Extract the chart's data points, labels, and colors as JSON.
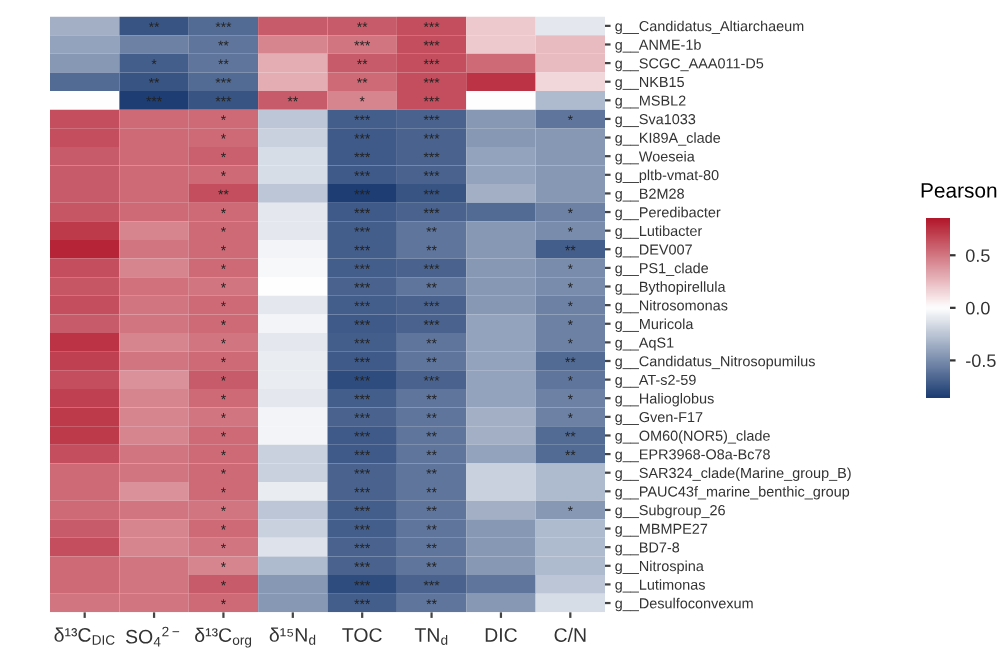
{
  "chart_data": {
    "type": "heatmap",
    "categories": [
      "δ¹³C$_{DIC}$",
      "SO$_{4}$$^{2−}$",
      "δ¹³C$_{org}$",
      "δ¹⁵N$_{d}$",
      "TOC",
      "TN$_{d}$",
      "DIC",
      "C/N"
    ],
    "y_categories": [
      "g__Candidatus_Altiarchaeum",
      "g__ANME-1b",
      "g__SCGC_AAA011-D5",
      "g__NKB15",
      "g__MSBL2",
      "g__Sva1033",
      "g__KI89A_clade",
      "g__Woeseia",
      "g__pltb-vmat-80",
      "g__B2M28",
      "g__Peredibacter",
      "g__Lutibacter",
      "g__DEV007",
      "g__PS1_clade",
      "g__Bythopirellula",
      "g__Nitrosomonas",
      "g__Muricola",
      "g__AqS1",
      "g__Candidatus_Nitrosopumilus",
      "g__AT-s2-59",
      "g__Halioglobus",
      "g__Gven-F17",
      "g__OM60(NOR5)_clade",
      "g__EPR3968-O8a-Bc78",
      "g__SAR324_clade(Marine_group_B)",
      "g__PAUC43f_marine_benthic_group",
      "g__Subgroup_26",
      "g__MBMPE27",
      "g__BD7-8",
      "g__Nitrospina",
      "g__Lutimonas",
      "g__Desulfoconvexum"
    ],
    "cells": [
      [
        -0.35,
        -0.75,
        -0.65,
        0.6,
        0.6,
        0.65,
        0.2,
        -0.1
      ],
      [
        -0.4,
        -0.55,
        -0.6,
        0.45,
        0.5,
        0.65,
        0.2,
        0.25
      ],
      [
        -0.45,
        -0.7,
        -0.6,
        0.3,
        0.6,
        0.65,
        0.55,
        0.25
      ],
      [
        -0.65,
        -0.75,
        -0.65,
        0.3,
        0.55,
        0.65,
        0.75,
        0.15
      ],
      [
        0.0,
        -0.85,
        -0.75,
        0.6,
        0.45,
        0.65,
        0.0,
        -0.3
      ],
      [
        0.65,
        0.55,
        0.55,
        -0.25,
        -0.7,
        -0.68,
        -0.45,
        -0.6
      ],
      [
        0.65,
        0.55,
        0.55,
        -0.2,
        -0.72,
        -0.68,
        -0.45,
        -0.45
      ],
      [
        0.6,
        0.55,
        0.58,
        -0.15,
        -0.72,
        -0.68,
        -0.4,
        -0.45
      ],
      [
        0.6,
        0.55,
        0.55,
        -0.15,
        -0.72,
        -0.68,
        -0.4,
        -0.45
      ],
      [
        0.6,
        0.55,
        0.65,
        -0.25,
        -0.85,
        -0.75,
        -0.35,
        -0.45
      ],
      [
        0.62,
        0.55,
        0.55,
        -0.1,
        -0.72,
        -0.68,
        -0.65,
        -0.55
      ],
      [
        0.72,
        0.45,
        0.55,
        -0.1,
        -0.7,
        -0.6,
        -0.45,
        -0.5
      ],
      [
        0.8,
        0.5,
        0.55,
        -0.05,
        -0.7,
        -0.6,
        -0.45,
        -0.7
      ],
      [
        0.65,
        0.45,
        0.55,
        -0.03,
        -0.7,
        -0.68,
        -0.45,
        -0.5
      ],
      [
        0.62,
        0.52,
        0.5,
        0.0,
        -0.68,
        -0.6,
        -0.45,
        -0.5
      ],
      [
        0.65,
        0.5,
        0.55,
        -0.1,
        -0.7,
        -0.68,
        -0.45,
        -0.55
      ],
      [
        0.6,
        0.5,
        0.55,
        -0.05,
        -0.72,
        -0.68,
        -0.4,
        -0.55
      ],
      [
        0.75,
        0.45,
        0.5,
        -0.1,
        -0.7,
        -0.6,
        -0.4,
        -0.55
      ],
      [
        0.7,
        0.5,
        0.55,
        -0.08,
        -0.72,
        -0.6,
        -0.4,
        -0.65
      ],
      [
        0.65,
        0.4,
        0.6,
        -0.08,
        -0.78,
        -0.68,
        -0.4,
        -0.6
      ],
      [
        0.7,
        0.45,
        0.55,
        -0.1,
        -0.7,
        -0.6,
        -0.4,
        -0.55
      ],
      [
        0.72,
        0.45,
        0.5,
        -0.05,
        -0.68,
        -0.6,
        -0.35,
        -0.55
      ],
      [
        0.72,
        0.45,
        0.55,
        -0.05,
        -0.72,
        -0.6,
        -0.35,
        -0.65
      ],
      [
        0.65,
        0.5,
        0.55,
        -0.2,
        -0.72,
        -0.6,
        -0.4,
        -0.65
      ],
      [
        0.55,
        0.5,
        0.55,
        -0.2,
        -0.68,
        -0.6,
        -0.2,
        -0.3
      ],
      [
        0.55,
        0.4,
        0.55,
        -0.08,
        -0.68,
        -0.6,
        -0.2,
        -0.3
      ],
      [
        0.55,
        0.5,
        0.5,
        -0.25,
        -0.7,
        -0.6,
        -0.35,
        -0.45
      ],
      [
        0.6,
        0.45,
        0.55,
        -0.2,
        -0.7,
        -0.6,
        -0.45,
        -0.3
      ],
      [
        0.65,
        0.45,
        0.5,
        -0.12,
        -0.68,
        -0.6,
        -0.45,
        -0.3
      ],
      [
        0.55,
        0.5,
        0.45,
        -0.3,
        -0.68,
        -0.6,
        -0.45,
        -0.3
      ],
      [
        0.55,
        0.5,
        0.6,
        -0.45,
        -0.78,
        -0.68,
        -0.6,
        -0.25
      ],
      [
        0.5,
        0.5,
        0.55,
        -0.45,
        -0.7,
        -0.6,
        -0.45,
        -0.15
      ]
    ],
    "cell_labels": [
      [
        null,
        "**",
        "***",
        null,
        "**",
        "***",
        null,
        null
      ],
      [
        null,
        null,
        "**",
        null,
        "***",
        "***",
        null,
        null
      ],
      [
        null,
        "*",
        "**",
        null,
        "**",
        "***",
        null,
        null
      ],
      [
        null,
        "**",
        "***",
        null,
        "**",
        "***",
        null,
        null
      ],
      [
        null,
        "***",
        "***",
        "**",
        "*",
        "***",
        null,
        null
      ],
      [
        null,
        null,
        "*",
        null,
        "***",
        "***",
        null,
        "*"
      ],
      [
        null,
        null,
        "*",
        null,
        "***",
        "***",
        null,
        null
      ],
      [
        null,
        null,
        "*",
        null,
        "***",
        "***",
        null,
        null
      ],
      [
        null,
        null,
        "*",
        null,
        "***",
        "***",
        null,
        null
      ],
      [
        null,
        null,
        "**",
        null,
        "***",
        "***",
        null,
        null
      ],
      [
        null,
        null,
        "*",
        null,
        "***",
        "***",
        null,
        "*"
      ],
      [
        null,
        null,
        "*",
        null,
        "***",
        "**",
        null,
        "*"
      ],
      [
        null,
        null,
        "*",
        null,
        "***",
        "**",
        null,
        "**"
      ],
      [
        null,
        null,
        "*",
        null,
        "***",
        "***",
        null,
        "*"
      ],
      [
        null,
        null,
        "*",
        null,
        "***",
        "**",
        null,
        "*"
      ],
      [
        null,
        null,
        "*",
        null,
        "***",
        "***",
        null,
        "*"
      ],
      [
        null,
        null,
        "*",
        null,
        "***",
        "***",
        null,
        "*"
      ],
      [
        null,
        null,
        "*",
        null,
        "***",
        "**",
        null,
        "*"
      ],
      [
        null,
        null,
        "*",
        null,
        "***",
        "**",
        null,
        "**"
      ],
      [
        null,
        null,
        "*",
        null,
        "***",
        "***",
        null,
        "*"
      ],
      [
        null,
        null,
        "*",
        null,
        "***",
        "**",
        null,
        "*"
      ],
      [
        null,
        null,
        "*",
        null,
        "***",
        "**",
        null,
        "*"
      ],
      [
        null,
        null,
        "*",
        null,
        "***",
        "**",
        null,
        "**"
      ],
      [
        null,
        null,
        "*",
        null,
        "***",
        "**",
        null,
        "**"
      ],
      [
        null,
        null,
        "*",
        null,
        "***",
        "**",
        null,
        null
      ],
      [
        null,
        null,
        "*",
        null,
        "***",
        "**",
        null,
        null
      ],
      [
        null,
        null,
        "*",
        null,
        "***",
        "**",
        null,
        "*"
      ],
      [
        null,
        null,
        "*",
        null,
        "***",
        "**",
        null,
        null
      ],
      [
        null,
        null,
        "*",
        null,
        "***",
        "**",
        null,
        null
      ],
      [
        null,
        null,
        "*",
        null,
        "***",
        "**",
        null,
        null
      ],
      [
        null,
        null,
        "*",
        null,
        "***",
        "***",
        null,
        null
      ],
      [
        null,
        null,
        "*",
        null,
        "***",
        "**",
        null,
        null
      ]
    ],
    "clabel": "Pearson",
    "clim": [
      -0.85,
      0.85
    ],
    "cticks": [
      -0.5,
      {
        "value": 0,
        "label": "0.0"
      },
      0.5
    ],
    "colors": [
      "#1d3d73",
      "#ffffff",
      "#b2182b"
    ]
  }
}
